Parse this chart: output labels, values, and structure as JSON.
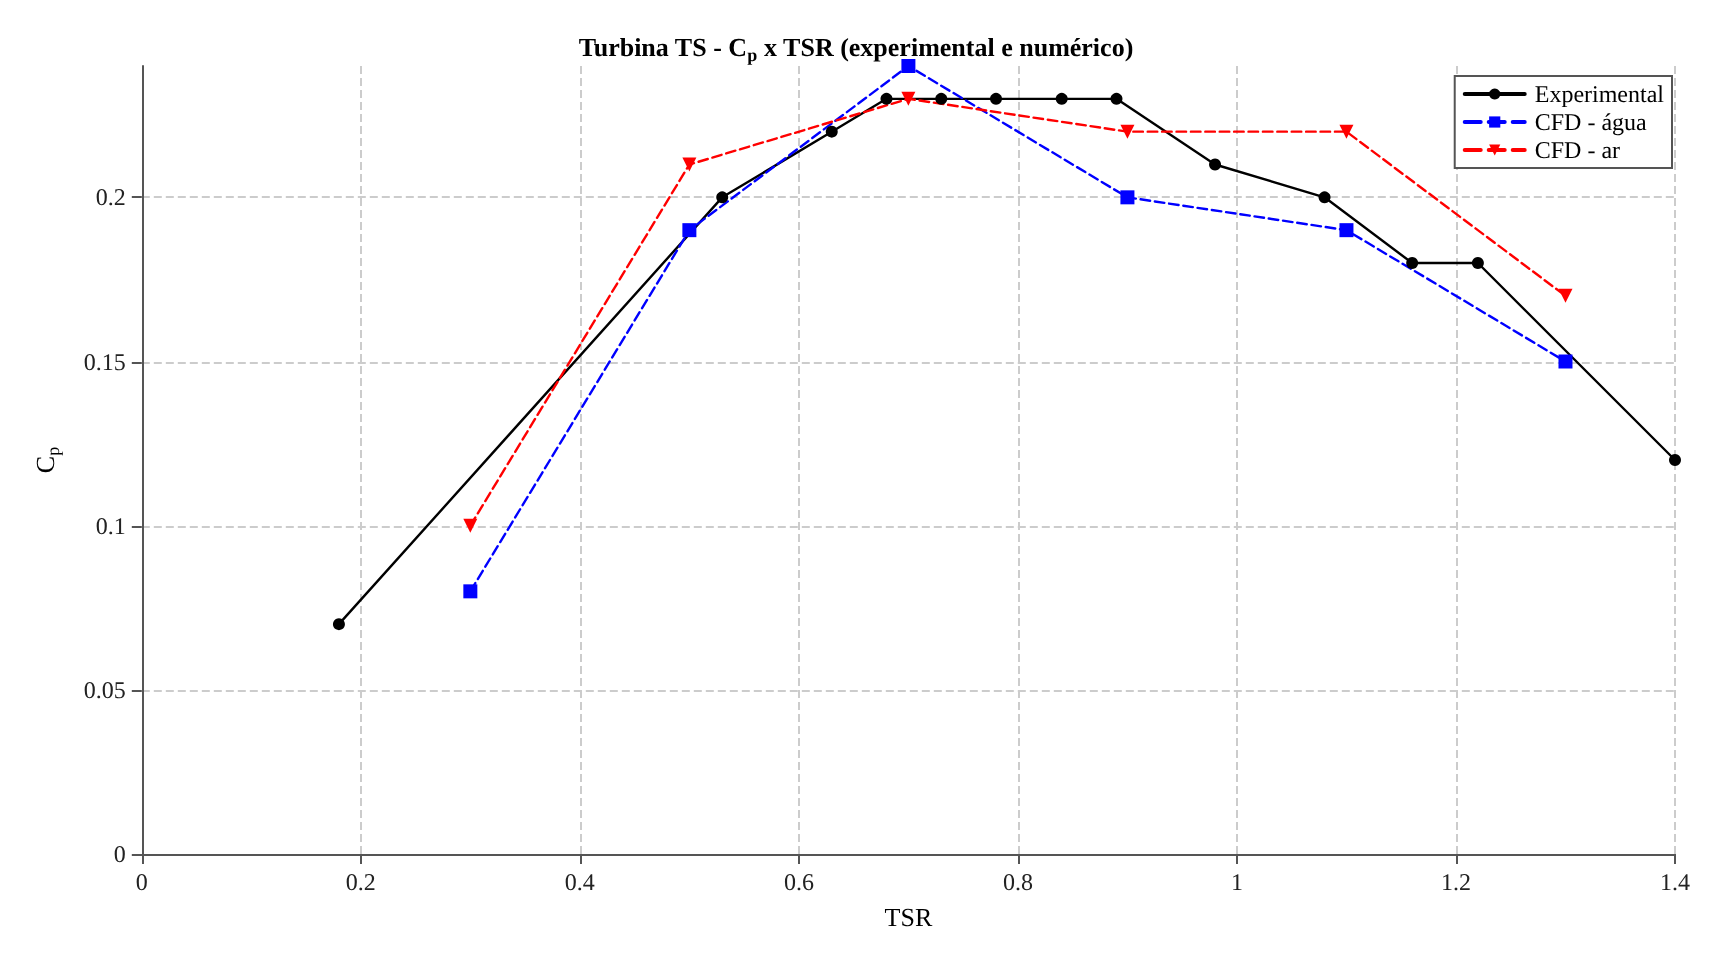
{
  "chart_data": {
    "type": "line",
    "title": "Turbina TS - C$_{p}$ x TSR (experimental e numérico)",
    "xlabel": "TSR",
    "ylabel": "C$_{p}$",
    "xlim": [
      0,
      1.4
    ],
    "xticks": [
      0,
      0.2,
      0.4,
      0.6,
      0.8,
      1,
      1.2,
      1.4
    ],
    "ylim": [
      0,
      0.24
    ],
    "yticks": [
      0,
      0.05,
      0.1,
      0.15,
      0.2
    ],
    "grid": true,
    "legend": "top right",
    "series": [
      {
        "name": "Experimental",
        "color": "#000000",
        "marker": "circle",
        "line_style": "solid",
        "x": [
          0.18,
          0.53,
          0.63,
          0.68,
          0.73,
          0.78,
          0.84,
          0.89,
          0.98,
          1.08,
          1.16,
          1.22,
          1.4
        ],
        "values": [
          0.07,
          0.2,
          0.22,
          0.23,
          0.23,
          0.23,
          0.23,
          0.23,
          0.21,
          0.2,
          0.18,
          0.18,
          0.12
        ]
      },
      {
        "name": "CFD - água",
        "color": "#0000ff",
        "marker": "square",
        "line_style": "dashed",
        "x": [
          0.3,
          0.5,
          0.7,
          0.9,
          1.1,
          1.3
        ],
        "values": [
          0.08,
          0.19,
          0.24,
          0.2,
          0.19,
          0.15
        ]
      },
      {
        "name": "CFD - ar",
        "color": "#ff0000",
        "marker": "triangle",
        "line_style": "dashed",
        "x": [
          0.3,
          0.5,
          0.7,
          0.9,
          1.1,
          1.3
        ],
        "values": [
          0.1,
          0.21,
          0.23,
          0.22,
          0.22,
          0.17
        ]
      }
    ]
  }
}
